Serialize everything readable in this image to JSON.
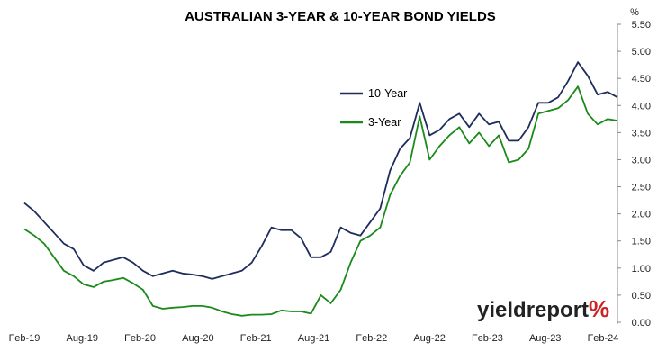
{
  "chart_data": {
    "type": "line",
    "title": "AUSTRALIAN 3-YEAR & 10-YEAR BOND YIELDS",
    "ylabel": "%",
    "ylim": [
      0,
      5.5
    ],
    "yticks": [
      "0.00",
      "0.50",
      "1.00",
      "1.50",
      "2.00",
      "2.50",
      "3.00",
      "3.50",
      "4.00",
      "4.50",
      "5.00",
      "5.50"
    ],
    "xlim": [
      "2019-02",
      "2024-02"
    ],
    "xticks": [
      "Feb-19",
      "Aug-19",
      "Feb-20",
      "Aug-20",
      "Feb-21",
      "Aug-21",
      "Feb-22",
      "Aug-22",
      "Feb-23",
      "Aug-23",
      "Feb-24"
    ],
    "grid": false,
    "legend_position": "inside, upper center",
    "x": [
      "2019-02",
      "2019-03",
      "2019-04",
      "2019-05",
      "2019-06",
      "2019-07",
      "2019-08",
      "2019-09",
      "2019-10",
      "2019-11",
      "2019-12",
      "2020-01",
      "2020-02",
      "2020-03",
      "2020-04",
      "2020-05",
      "2020-06",
      "2020-07",
      "2020-08",
      "2020-09",
      "2020-10",
      "2020-11",
      "2020-12",
      "2021-01",
      "2021-02",
      "2021-03",
      "2021-04",
      "2021-05",
      "2021-06",
      "2021-07",
      "2021-08",
      "2021-09",
      "2021-10",
      "2021-11",
      "2021-12",
      "2022-01",
      "2022-02",
      "2022-03",
      "2022-04",
      "2022-05",
      "2022-06",
      "2022-07",
      "2022-08",
      "2022-09",
      "2022-10",
      "2022-11",
      "2022-12",
      "2023-01",
      "2023-02",
      "2023-03",
      "2023-04",
      "2023-05",
      "2023-06",
      "2023-07",
      "2023-08",
      "2023-09",
      "2023-10",
      "2023-11",
      "2023-12",
      "2024-01",
      "2024-02"
    ],
    "series": [
      {
        "name": "10-Year",
        "color": "#1f2d5c",
        "values": [
          2.2,
          2.05,
          1.85,
          1.65,
          1.45,
          1.35,
          1.05,
          0.95,
          1.1,
          1.15,
          1.2,
          1.1,
          0.95,
          0.85,
          0.9,
          0.95,
          0.9,
          0.88,
          0.85,
          0.8,
          0.85,
          0.9,
          0.95,
          1.1,
          1.4,
          1.75,
          1.7,
          1.7,
          1.55,
          1.2,
          1.2,
          1.3,
          1.75,
          1.65,
          1.6,
          1.85,
          2.1,
          2.8,
          3.2,
          3.4,
          4.05,
          3.45,
          3.55,
          3.75,
          3.85,
          3.6,
          3.85,
          3.65,
          3.7,
          3.35,
          3.35,
          3.6,
          4.05,
          4.05,
          4.15,
          4.45,
          4.8,
          4.55,
          4.2,
          4.25,
          4.15
        ]
      },
      {
        "name": "3-Year",
        "color": "#1a8a1a",
        "values": [
          1.72,
          1.6,
          1.45,
          1.2,
          0.95,
          0.85,
          0.7,
          0.65,
          0.75,
          0.78,
          0.82,
          0.72,
          0.6,
          0.3,
          0.25,
          0.27,
          0.28,
          0.3,
          0.3,
          0.27,
          0.2,
          0.15,
          0.12,
          0.14,
          0.14,
          0.15,
          0.22,
          0.2,
          0.2,
          0.16,
          0.5,
          0.35,
          0.6,
          1.1,
          1.5,
          1.6,
          1.75,
          2.35,
          2.7,
          2.95,
          3.8,
          3.0,
          3.25,
          3.45,
          3.6,
          3.3,
          3.5,
          3.25,
          3.45,
          2.95,
          3.0,
          3.2,
          3.85,
          3.9,
          3.95,
          4.1,
          4.35,
          3.85,
          3.65,
          3.75,
          3.72
        ]
      }
    ]
  },
  "branding": {
    "name": "yieldreport",
    "symbol": "%"
  }
}
